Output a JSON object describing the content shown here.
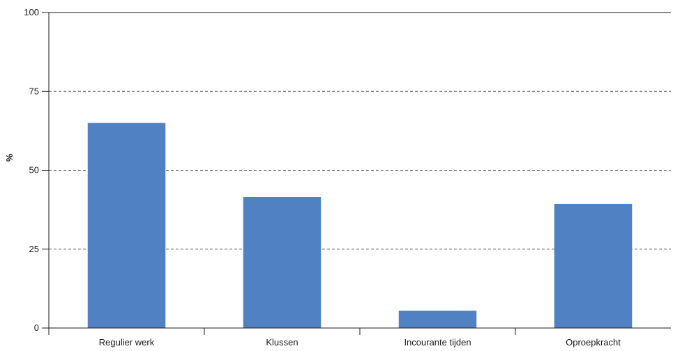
{
  "chart_data": {
    "type": "bar",
    "categories": [
      "Regulier werk",
      "Klussen",
      "Incourante tijden",
      "Oproepkracht"
    ],
    "values": [
      65,
      41.5,
      5.5,
      39.3
    ],
    "title": "",
    "xlabel": "",
    "ylabel": "%",
    "ylim": [
      0,
      100
    ],
    "yticks": [
      "0",
      "25",
      "50",
      "75",
      "100"
    ],
    "grid": "dashed horizontal at 25, 50, 75",
    "legend": "none",
    "colors": {
      "bar": "#4f81c3",
      "axis": "#1a1a1a",
      "grid": "#555555"
    }
  }
}
